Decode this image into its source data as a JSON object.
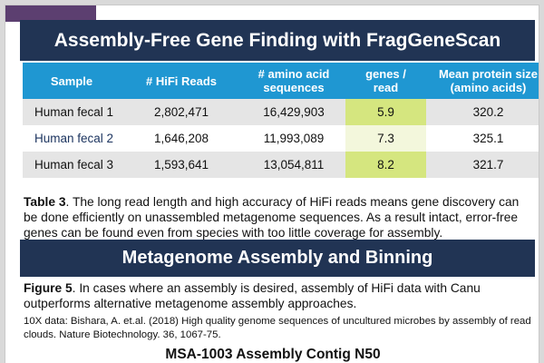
{
  "banner_gene_finding": "Assembly-Free Gene Finding with FragGeneScan",
  "table": {
    "headers": {
      "sample": "Sample",
      "hifi_reads": "# HiFi Reads",
      "amino_acid_line1": "# amino acid",
      "amino_acid_line2": "sequences",
      "genes_line1": "genes /",
      "genes_line2": "read",
      "mean_line1": "Mean protein size",
      "mean_line2": "(amino acids)"
    },
    "rows": [
      {
        "sample": "Human fecal 1",
        "hifi_reads": "2,802,471",
        "amino_acid_sequences": "16,429,903",
        "genes_per_read": "5.9",
        "mean_protein_size": "320.2"
      },
      {
        "sample": "Human fecal 2",
        "hifi_reads": "1,646,208",
        "amino_acid_sequences": "11,993,089",
        "genes_per_read": "7.3",
        "mean_protein_size": "325.1"
      },
      {
        "sample": "Human fecal 3",
        "hifi_reads": "1,593,641",
        "amino_acid_sequences": "13,054,811",
        "genes_per_read": "8.2",
        "mean_protein_size": "321.7"
      }
    ],
    "highlight_color": "#d5e67f",
    "header_color": "#1f97d2"
  },
  "table_caption": {
    "label": "Table 3",
    "text": ". The long read length and high accuracy of HiFi reads means gene discovery can be done efficiently on unassembled metagenome sequences. As a result intact, error-free genes can be found even from species with too little coverage for assembly."
  },
  "banner_assembly": "Metagenome Assembly and Binning",
  "figure_caption": {
    "label": "Figure 5",
    "text": ". In cases where an assembly is desired, assembly of HiFi data with Canu outperforms alternative metagenome assembly approaches."
  },
  "citation": "10X data: Bishara, A. et.al. (2018) High quality genome sequences of uncultured microbes by assembly of read clouds. Nature Biotechnology. 36, 1067-75.",
  "next_section_title": "MSA-1003 Assembly Contig N50",
  "colors": {
    "banner": "#213454",
    "background": "#d9d9d9",
    "accent": "#5c3f70"
  }
}
